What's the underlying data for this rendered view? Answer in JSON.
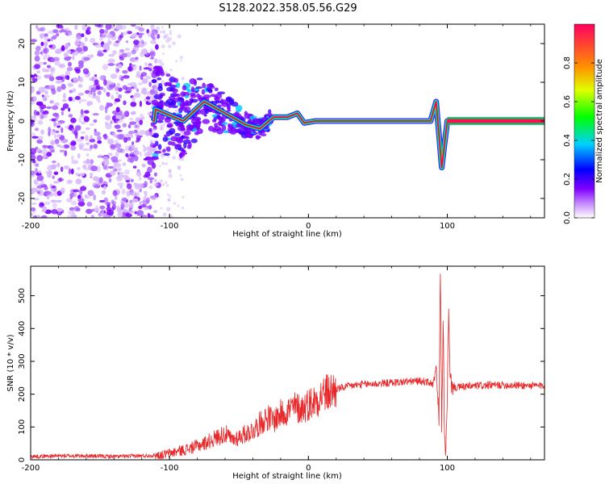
{
  "title": "S128.2022.358.05.56.G29",
  "chart_data": [
    {
      "type": "heatmap",
      "xlabel": "Height of straight line (km)",
      "ylabel": "Frequency (Hz)",
      "xlim": [
        -200,
        170
      ],
      "ylim": [
        -25,
        25
      ],
      "x_ticks": [
        -200,
        -100,
        0,
        100
      ],
      "y_ticks": [
        -20,
        -10,
        0,
        10,
        20
      ],
      "colorbar": {
        "label": "Normalized spectral amplitude",
        "range": [
          0.0,
          1.0
        ],
        "ticks": [
          0.0,
          0.2,
          0.4,
          0.6,
          0.8
        ],
        "colors": [
          "#ffffff",
          "#a000ff",
          "#0000ff",
          "#00c8ff",
          "#00ff00",
          "#ffff00",
          "#ff8000",
          "#ff0040"
        ]
      },
      "ridge": {
        "description_values": [
          {
            "x": -110,
            "f": 3
          },
          {
            "x": -90,
            "f": 0
          },
          {
            "x": -75,
            "f": 5
          },
          {
            "x": -60,
            "f": 2
          },
          {
            "x": -45,
            "f": -1
          },
          {
            "x": -35,
            "f": -2
          },
          {
            "x": -25,
            "f": 1
          },
          {
            "x": -15,
            "f": 1
          },
          {
            "x": -8,
            "f": 2
          },
          {
            "x": -3,
            "f": -0.5
          },
          {
            "x": 5,
            "f": 0
          },
          {
            "x": 88,
            "f": 0
          },
          {
            "x": 92,
            "f": 5
          },
          {
            "x": 96,
            "f": -12
          },
          {
            "x": 100,
            "f": 0
          },
          {
            "x": 170,
            "f": 0
          }
        ]
      }
    },
    {
      "type": "line",
      "xlabel": "Height of straight line (km)",
      "ylabel": "SNR (10 * v/v)",
      "xlim": [
        -200,
        170
      ],
      "ylim": [
        0,
        590
      ],
      "x_ticks": [
        -200,
        -100,
        0,
        100
      ],
      "y_ticks": [
        0,
        100,
        200,
        300,
        400,
        500
      ],
      "series": [
        {
          "color": "#e8282a",
          "x": [
            -200,
            -180,
            -160,
            -140,
            -120,
            -105,
            -95,
            -85,
            -75,
            -65,
            -60,
            -55,
            -50,
            -45,
            -40,
            -35,
            -30,
            -25,
            -20,
            -15,
            -10,
            -5,
            0,
            5,
            10,
            15,
            20,
            25,
            30,
            40,
            50,
            60,
            70,
            80,
            85,
            90,
            92,
            94,
            95,
            96,
            97,
            98,
            99,
            100,
            101,
            102,
            103,
            104,
            106,
            110,
            120,
            140,
            160,
            170
          ],
          "y": [
            10,
            12,
            12,
            10,
            12,
            15,
            25,
            35,
            50,
            70,
            80,
            60,
            70,
            80,
            90,
            110,
            130,
            120,
            140,
            150,
            160,
            155,
            170,
            180,
            200,
            205,
            215,
            220,
            225,
            230,
            232,
            235,
            238,
            240,
            238,
            230,
            280,
            120,
            585,
            100,
            430,
            60,
            20,
            200,
            445,
            250,
            230,
            225,
            220,
            222,
            225,
            228,
            226,
            225
          ]
        }
      ]
    }
  ]
}
